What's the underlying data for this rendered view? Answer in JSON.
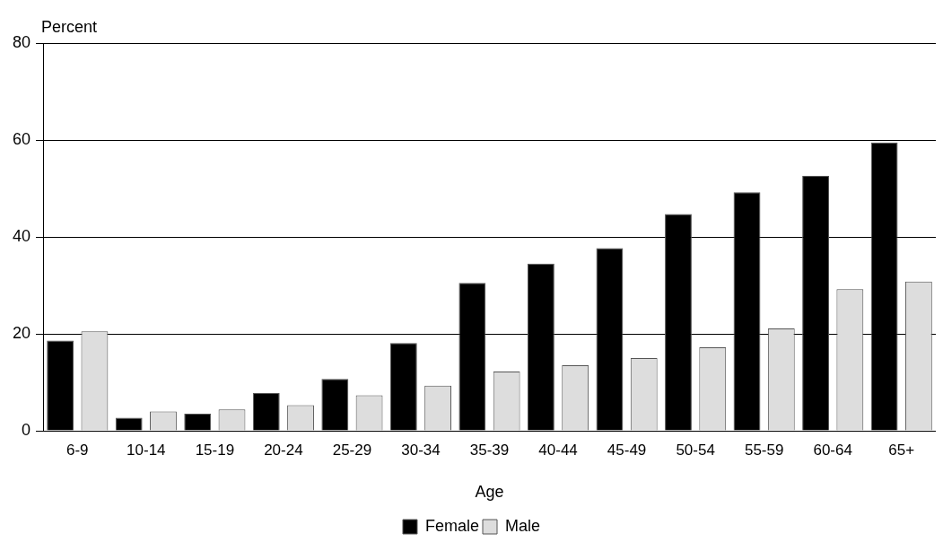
{
  "chart_data": {
    "type": "bar",
    "categories": [
      "6-9",
      "10-14",
      "15-19",
      "20-24",
      "25-29",
      "30-34",
      "35-39",
      "40-44",
      "45-49",
      "50-54",
      "55-59",
      "60-64",
      "65+"
    ],
    "series": [
      {
        "name": "Female",
        "color": "#000000",
        "values": [
          18.6,
          2.7,
          3.5,
          7.8,
          10.7,
          18.1,
          30.5,
          34.5,
          37.7,
          44.7,
          49.2,
          52.6,
          59.5
        ]
      },
      {
        "name": "Male",
        "color": "#dddddd",
        "values": [
          20.5,
          4.0,
          4.4,
          5.3,
          7.3,
          9.3,
          12.2,
          13.5,
          15.0,
          17.2,
          21.1,
          29.2,
          30.8
        ]
      }
    ],
    "xlabel": "Age",
    "ylabel": "Percent",
    "ylim": [
      0,
      80
    ],
    "yticks": [
      0,
      20,
      40,
      60,
      80
    ],
    "grid": "y",
    "legend": "bottom"
  }
}
